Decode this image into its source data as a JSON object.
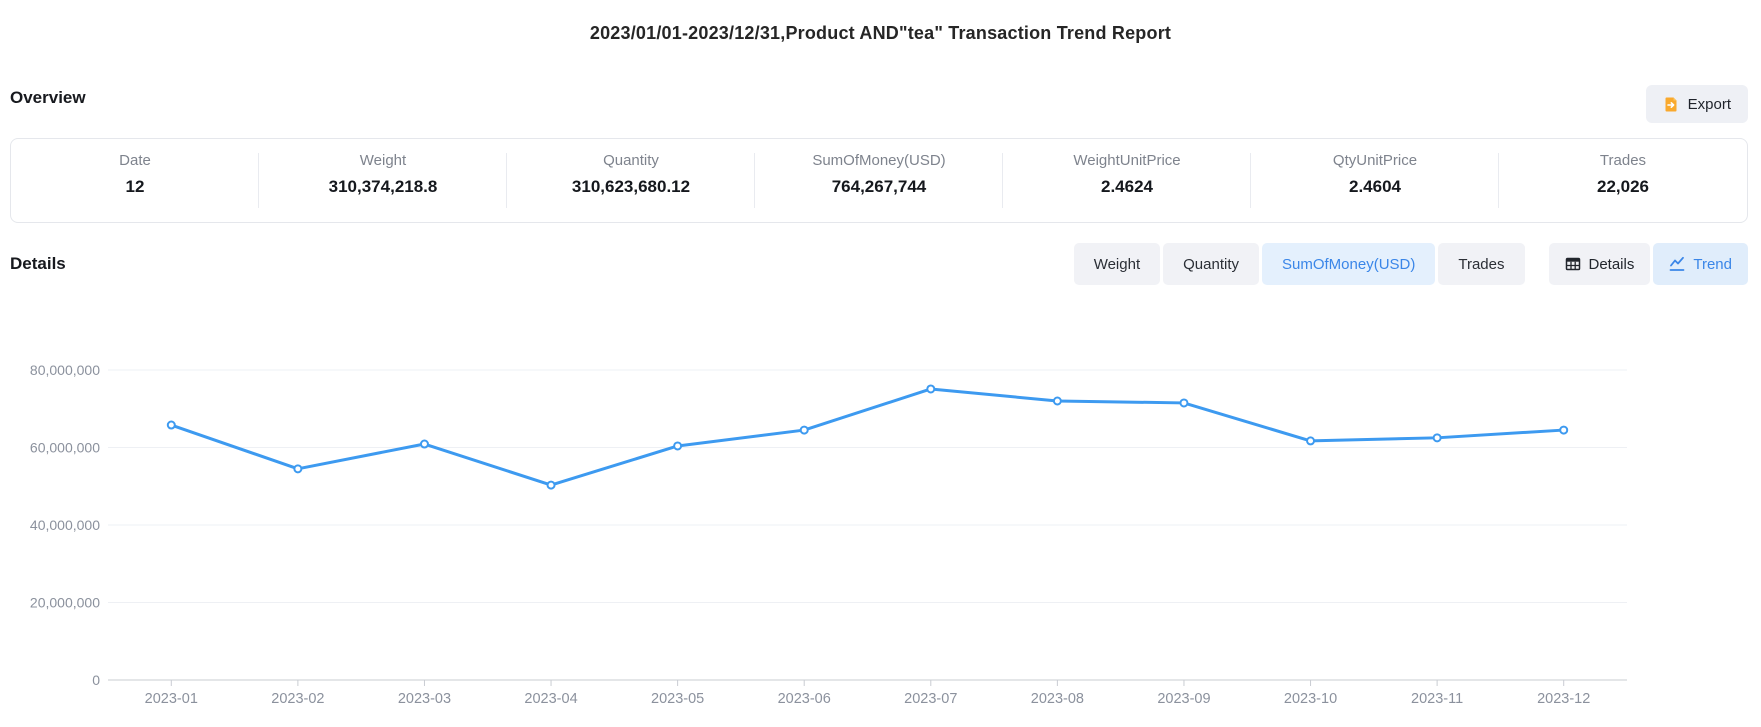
{
  "title": "2023/01/01-2023/12/31,Product AND\"tea\" Transaction Trend Report",
  "overview": {
    "heading": "Overview",
    "export_label": "Export",
    "stats": [
      {
        "label": "Date",
        "value": "12"
      },
      {
        "label": "Weight",
        "value": "310,374,218.8"
      },
      {
        "label": "Quantity",
        "value": "310,623,680.12"
      },
      {
        "label": "SumOfMoney(USD)",
        "value": "764,267,744"
      },
      {
        "label": "WeightUnitPrice",
        "value": "2.4624"
      },
      {
        "label": "QtyUnitPrice",
        "value": "2.4604"
      },
      {
        "label": "Trades",
        "value": "22,026"
      }
    ]
  },
  "details": {
    "heading": "Details",
    "metric_tabs": [
      {
        "label": "Weight",
        "active": false
      },
      {
        "label": "Quantity",
        "active": false
      },
      {
        "label": "SumOfMoney(USD)",
        "active": true
      },
      {
        "label": "Trades",
        "active": false
      }
    ],
    "view_toggle": [
      {
        "label": "Details",
        "icon": "table-icon",
        "active": false
      },
      {
        "label": "Trend",
        "icon": "trend-icon",
        "active": true
      }
    ]
  },
  "colors": {
    "accent_blue": "#3a86e8",
    "active_tab_bg": "#e4f0fd",
    "inactive_tab_bg": "#f1f2f6",
    "export_icon_orange": "#f9a92d"
  },
  "chart_data": {
    "type": "line",
    "title": "",
    "xlabel": "",
    "ylabel": "",
    "categories": [
      "2023-01",
      "2023-02",
      "2023-03",
      "2023-04",
      "2023-05",
      "2023-06",
      "2023-07",
      "2023-08",
      "2023-09",
      "2023-10",
      "2023-11",
      "2023-12"
    ],
    "series": [
      {
        "name": "SumOfMoney(USD)",
        "values": [
          65800000,
          54500000,
          60900000,
          50300000,
          60400000,
          64500000,
          75100000,
          72000000,
          71500000,
          61700000,
          62500000,
          64500000
        ]
      }
    ],
    "ylim": [
      0,
      80000000
    ],
    "ytick_step": 20000000,
    "ytick_labels": [
      "0",
      "20,000,000",
      "40,000,000",
      "60,000,000",
      "80,000,000"
    ],
    "grid": true,
    "legend": false,
    "marker": "open-circle",
    "line_color": "#3d9af0",
    "grid_color": "#eef0f4",
    "axis_color": "#c9ccd2",
    "tick_label_color": "#8b919d"
  }
}
